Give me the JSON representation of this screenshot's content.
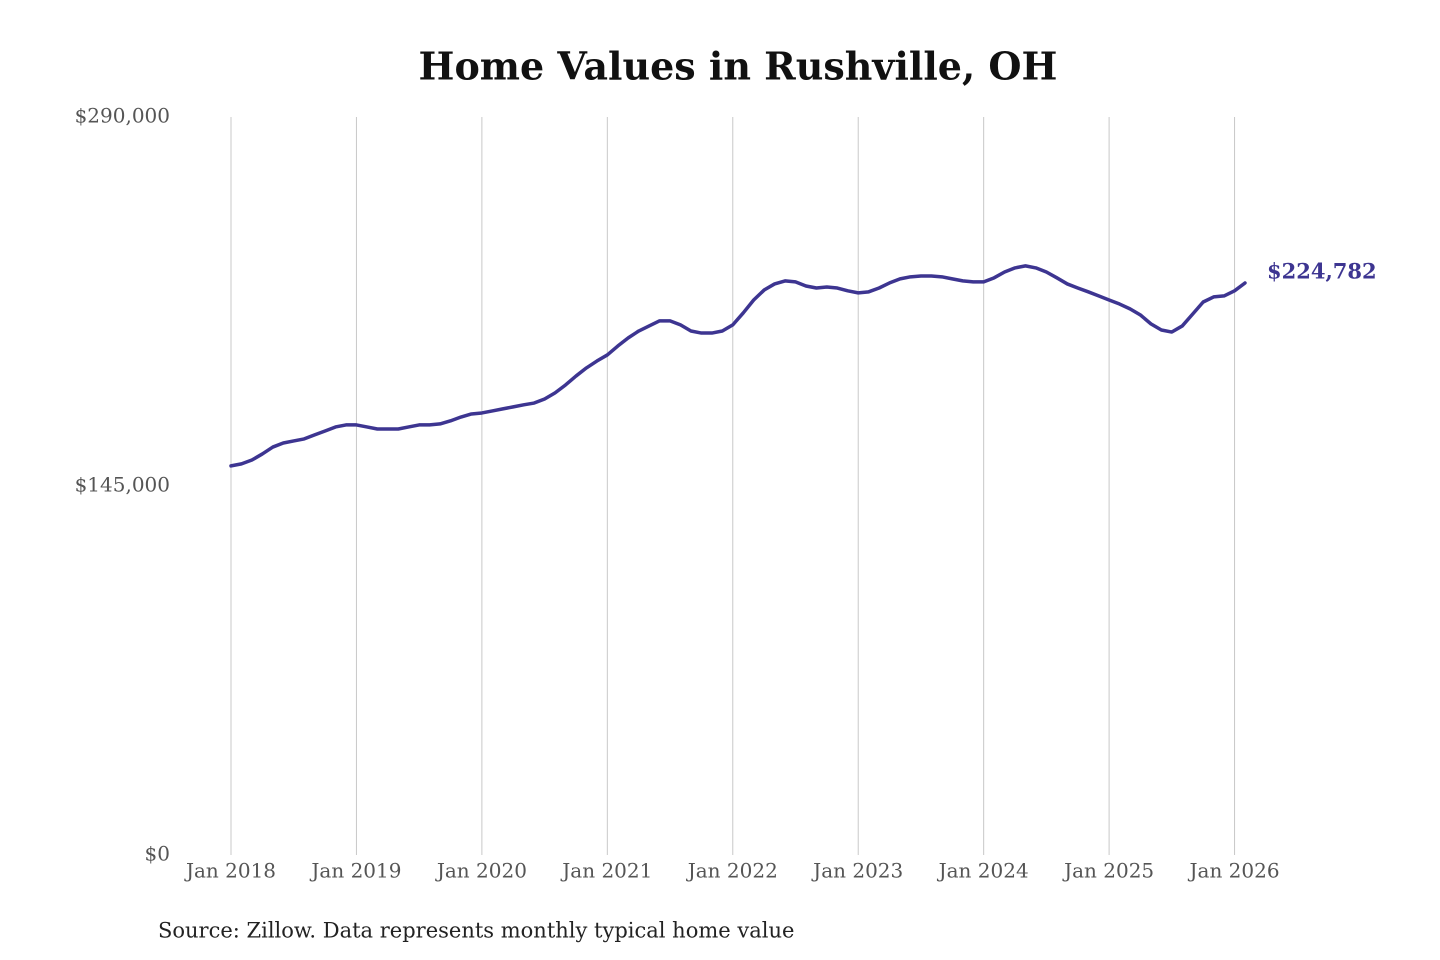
{
  "chart_data": {
    "type": "line",
    "title": "Home Values in Rushville, OH",
    "source": "Source: Zillow. Data represents monthly typical home value",
    "x": [
      "2018-01",
      "2018-02",
      "2018-03",
      "2018-04",
      "2018-05",
      "2018-06",
      "2018-07",
      "2018-08",
      "2018-09",
      "2018-10",
      "2018-11",
      "2018-12",
      "2019-01",
      "2019-02",
      "2019-03",
      "2019-04",
      "2019-05",
      "2019-06",
      "2019-07",
      "2019-08",
      "2019-09",
      "2019-10",
      "2019-11",
      "2019-12",
      "2020-01",
      "2020-02",
      "2020-03",
      "2020-04",
      "2020-05",
      "2020-06",
      "2020-07",
      "2020-08",
      "2020-09",
      "2020-10",
      "2020-11",
      "2020-12",
      "2021-01",
      "2021-02",
      "2021-03",
      "2021-04",
      "2021-05",
      "2021-06",
      "2021-07",
      "2021-08",
      "2021-09",
      "2021-10",
      "2021-11",
      "2021-12",
      "2022-01",
      "2022-02",
      "2022-03",
      "2022-04",
      "2022-05",
      "2022-06",
      "2022-07",
      "2022-08",
      "2022-09",
      "2022-10",
      "2022-11",
      "2022-12",
      "2023-01",
      "2023-02",
      "2023-03",
      "2023-04",
      "2023-05",
      "2023-06",
      "2023-07",
      "2023-08",
      "2023-09",
      "2023-10",
      "2023-11",
      "2023-12",
      "2024-01",
      "2024-02",
      "2024-03",
      "2024-04",
      "2024-05",
      "2024-06",
      "2024-07",
      "2024-08",
      "2024-09",
      "2024-10",
      "2024-11",
      "2024-12",
      "2025-01",
      "2025-02",
      "2025-03",
      "2025-04",
      "2025-05",
      "2025-06",
      "2025-07",
      "2025-08",
      "2025-09",
      "2025-10",
      "2025-11",
      "2025-12",
      "2026-01",
      "2026-02"
    ],
    "series": [
      {
        "color": "#3d3591",
        "values": [
          152900,
          153700,
          155200,
          157600,
          160300,
          161900,
          162700,
          163500,
          165100,
          166600,
          168200,
          169000,
          169000,
          168200,
          167400,
          167400,
          167400,
          168200,
          169000,
          169000,
          169400,
          170600,
          172100,
          173300,
          173700,
          174500,
          175300,
          176100,
          176900,
          177600,
          179200,
          181600,
          184700,
          188200,
          191400,
          194100,
          196500,
          200000,
          203200,
          205900,
          207900,
          209900,
          209900,
          208300,
          205900,
          205100,
          205100,
          205900,
          208300,
          213000,
          218100,
          222000,
          224400,
          225600,
          225200,
          223600,
          222800,
          223200,
          222800,
          221700,
          220900,
          221300,
          222800,
          224800,
          226400,
          227200,
          227500,
          227500,
          227200,
          226400,
          225600,
          225200,
          225200,
          226800,
          229100,
          230700,
          231500,
          230700,
          229100,
          226800,
          224400,
          222800,
          221300,
          219700,
          218100,
          216500,
          214600,
          212200,
          208700,
          206300,
          205500,
          207900,
          212600,
          217300,
          219300,
          219700,
          221700,
          224782
        ],
        "value_labels": [
          null,
          null,
          null,
          null,
          null,
          null,
          null,
          null,
          null,
          null,
          null,
          null,
          null,
          null,
          null,
          null,
          null,
          null,
          null,
          null,
          null,
          null,
          null,
          null,
          null,
          null,
          null,
          null,
          null,
          null,
          null,
          null,
          null,
          null,
          null,
          null,
          null,
          null,
          null,
          null,
          null,
          null,
          null,
          null,
          null,
          null,
          null,
          null,
          null,
          null,
          null,
          null,
          null,
          null,
          null,
          null,
          null,
          null,
          null,
          null,
          null,
          null,
          null,
          null,
          null,
          null,
          null,
          null,
          null,
          null,
          null,
          null,
          null,
          null,
          null,
          null,
          null,
          null,
          null,
          null,
          null,
          null,
          null,
          null,
          null,
          null,
          null,
          null,
          null,
          null,
          null,
          null,
          null,
          null,
          null,
          null,
          null,
          "$224,782"
        ]
      }
    ],
    "xlim": [
      "2018-01",
      "2026-02"
    ],
    "xticks": [
      {
        "value": "2018-01",
        "label": "Jan 2018"
      },
      {
        "value": "2019-01",
        "label": "Jan 2019"
      },
      {
        "value": "2020-01",
        "label": "Jan 2020"
      },
      {
        "value": "2021-01",
        "label": "Jan 2021"
      },
      {
        "value": "2022-01",
        "label": "Jan 2022"
      },
      {
        "value": "2023-01",
        "label": "Jan 2023"
      },
      {
        "value": "2024-01",
        "label": "Jan 2024"
      },
      {
        "value": "2025-01",
        "label": "Jan 2025"
      },
      {
        "value": "2026-01",
        "label": "Jan 2026"
      }
    ],
    "ylim": [
      0,
      290000
    ],
    "yticks": [
      {
        "value": 0,
        "label": "$0"
      },
      {
        "value": 145000,
        "label": "$145,000"
      },
      {
        "value": 290000,
        "label": "$290,000"
      }
    ],
    "grid": "x"
  }
}
